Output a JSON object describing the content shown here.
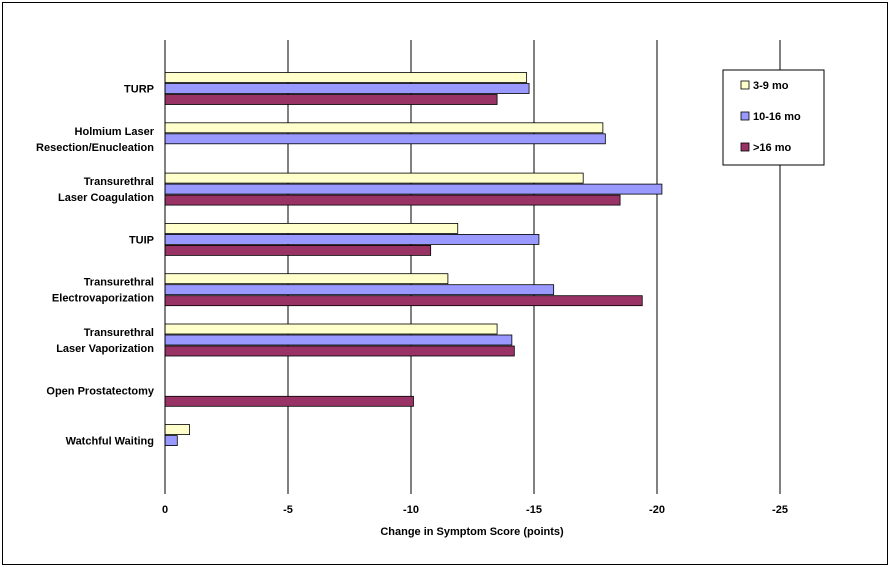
{
  "chart_data": {
    "type": "bar",
    "orientation": "horizontal",
    "xlabel": "Change in Symptom Score (points)",
    "xlim": [
      0,
      -25
    ],
    "x_ticks": [
      0,
      -5,
      -10,
      -15,
      -20,
      -25
    ],
    "x_tick_labels": [
      "0",
      "-5",
      "-10",
      "-15",
      "-20",
      "-25"
    ],
    "grid": "vertical",
    "legend_position": "top-right",
    "categories": [
      [
        "TURP"
      ],
      [
        "Holmium Laser",
        "Resection/Enucleation"
      ],
      [
        "Transurethral",
        "Laser Coagulation"
      ],
      [
        "TUIP"
      ],
      [
        "Transurethral",
        "Electrovaporization"
      ],
      [
        "Transurethral",
        "Laser Vaporization"
      ],
      [
        "Open Prostatectomy"
      ],
      [
        "Watchful Waiting"
      ]
    ],
    "series": [
      {
        "name": "3-9 mo",
        "color": "#ffffcc",
        "values": [
          -14.7,
          -17.8,
          -17.0,
          -11.9,
          -11.5,
          -13.5,
          null,
          -1.0
        ]
      },
      {
        "name": "10-16 mo",
        "color": "#9999ff",
        "values": [
          -14.8,
          -17.9,
          -20.2,
          -15.2,
          -15.8,
          -14.1,
          null,
          -0.5
        ]
      },
      {
        "name": ">16 mo",
        "color": "#993366",
        "values": [
          -13.5,
          null,
          -18.5,
          -10.8,
          -19.4,
          -14.2,
          -10.1,
          null
        ]
      }
    ]
  }
}
